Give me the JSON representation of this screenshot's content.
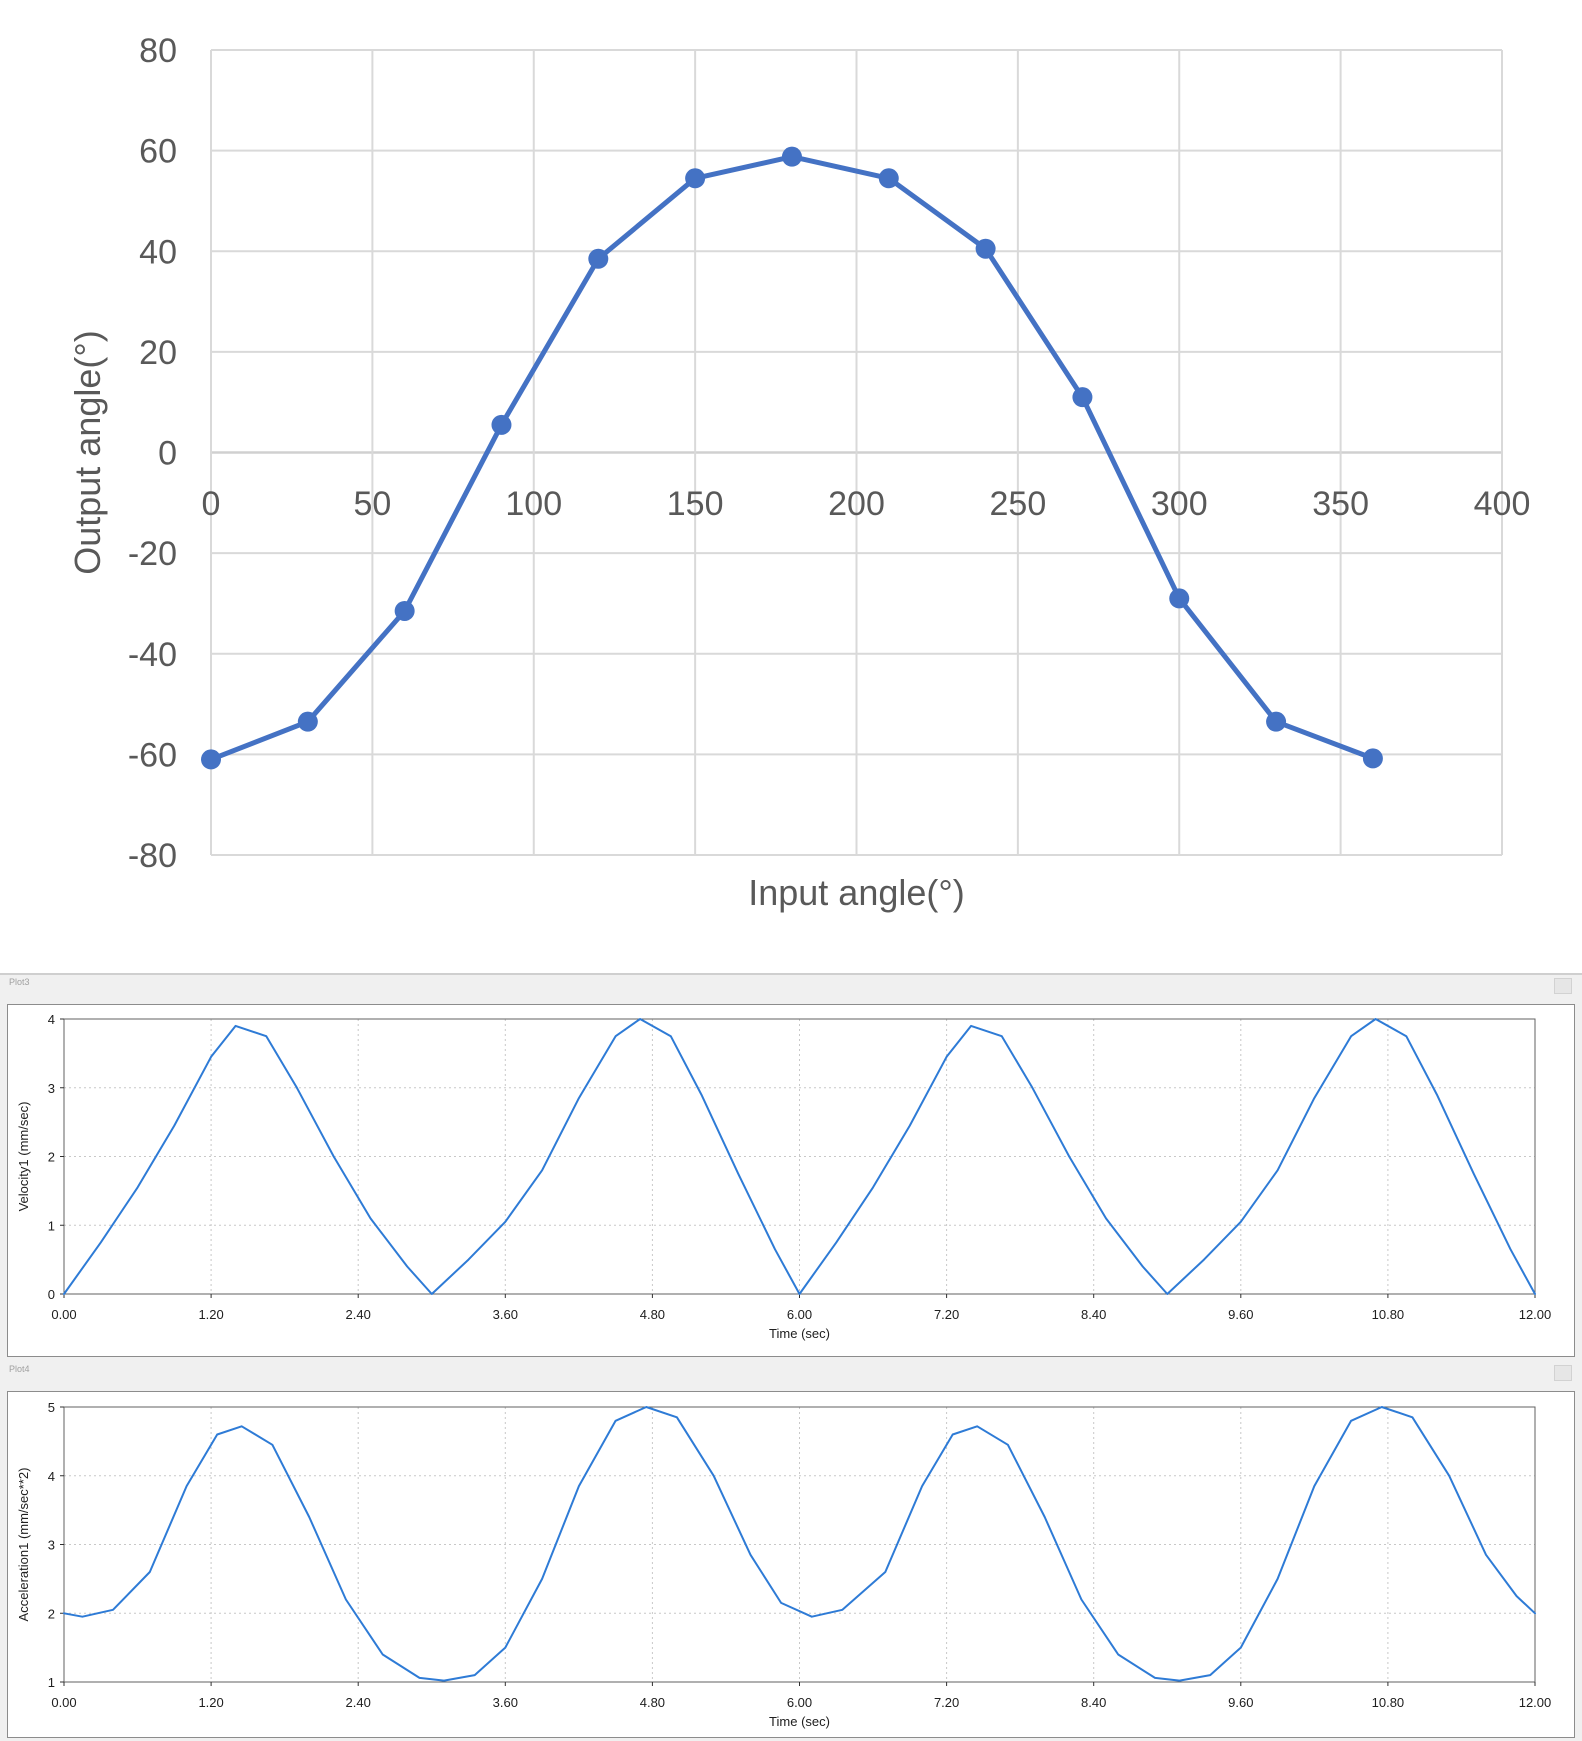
{
  "chart_data": [
    {
      "type": "line",
      "xlabel": "Input angle(°)",
      "ylabel": "Output angle(°)",
      "xlim": [
        0,
        400
      ],
      "ylim": [
        -80,
        80
      ],
      "x_ticks": [
        "0",
        "50",
        "100",
        "150",
        "200",
        "250",
        "300",
        "350",
        "400"
      ],
      "y_ticks": [
        "80",
        "60",
        "40",
        "20",
        "0",
        "-20",
        "-40",
        "-60",
        "-80"
      ],
      "grid": true,
      "markers": true,
      "color": "#4472c4",
      "series": [
        {
          "x": [
            0,
            30,
            60,
            90,
            120,
            150,
            180,
            210,
            240,
            270,
            300,
            330,
            360
          ],
          "values": [
            -61,
            -53.5,
            -31.5,
            5.5,
            38.5,
            54.5,
            58.8,
            54.5,
            40.5,
            11,
            -29,
            -53.5,
            -60.8
          ]
        }
      ]
    },
    {
      "type": "line",
      "panel_title": "Plot3",
      "xlabel": "Time (sec)",
      "ylabel": "Velocity1 (mm/sec)",
      "xlim": [
        0,
        12
      ],
      "ylim": [
        0,
        4
      ],
      "x_ticks": [
        "0.00",
        "1.20",
        "2.40",
        "3.60",
        "4.80",
        "6.00",
        "7.20",
        "8.40",
        "9.60",
        "10.80",
        "12.00"
      ],
      "y_ticks": [
        "0",
        "1",
        "2",
        "3",
        "4"
      ],
      "grid": true,
      "color": "#2e7bd6",
      "series": [
        {
          "x": [
            0,
            0.3,
            0.6,
            0.9,
            1.2,
            1.4,
            1.65,
            1.9,
            2.2,
            2.5,
            2.8,
            3.0,
            3.3,
            3.6,
            3.9,
            4.2,
            4.5,
            4.7,
            4.95,
            5.2,
            5.5,
            5.8,
            6.0,
            6.3,
            6.6,
            6.9,
            7.2,
            7.4,
            7.65,
            7.9,
            8.2,
            8.5,
            8.8,
            9.0,
            9.3,
            9.6,
            9.9,
            10.2,
            10.5,
            10.7,
            10.95,
            11.2,
            11.5,
            11.8,
            12.0
          ],
          "values": [
            0,
            0.75,
            1.55,
            2.45,
            3.45,
            3.9,
            3.75,
            3.0,
            2.0,
            1.1,
            0.4,
            0,
            0.5,
            1.05,
            1.8,
            2.85,
            3.75,
            4.0,
            3.75,
            2.9,
            1.75,
            0.65,
            0,
            0.75,
            1.55,
            2.45,
            3.45,
            3.9,
            3.75,
            3.0,
            2.0,
            1.1,
            0.4,
            0,
            0.5,
            1.05,
            1.8,
            2.85,
            3.75,
            4.0,
            3.75,
            2.9,
            1.75,
            0.65,
            0
          ]
        }
      ]
    },
    {
      "type": "line",
      "panel_title": "Plot4",
      "xlabel": "Time (sec)",
      "ylabel": "Acceleration1 (mm/sec**2)",
      "xlim": [
        0,
        12
      ],
      "ylim": [
        1,
        5
      ],
      "x_ticks": [
        "0.00",
        "1.20",
        "2.40",
        "3.60",
        "4.80",
        "6.00",
        "7.20",
        "8.40",
        "9.60",
        "10.80",
        "12.00"
      ],
      "y_ticks": [
        "1",
        "2",
        "3",
        "4",
        "5"
      ],
      "grid": true,
      "color": "#2e7bd6",
      "series": [
        {
          "x": [
            0,
            0.15,
            0.4,
            0.7,
            1.0,
            1.25,
            1.45,
            1.7,
            2.0,
            2.3,
            2.6,
            2.9,
            3.1,
            3.35,
            3.6,
            3.9,
            4.2,
            4.5,
            4.75,
            5.0,
            5.3,
            5.6,
            5.85,
            6.1,
            6.35,
            6.7,
            7.0,
            7.25,
            7.45,
            7.7,
            8.0,
            8.3,
            8.6,
            8.9,
            9.1,
            9.35,
            9.6,
            9.9,
            10.2,
            10.5,
            10.75,
            11.0,
            11.3,
            11.6,
            11.85,
            12.0
          ],
          "values": [
            2.0,
            1.95,
            2.05,
            2.6,
            3.85,
            4.6,
            4.72,
            4.45,
            3.4,
            2.2,
            1.4,
            1.06,
            1.02,
            1.1,
            1.5,
            2.5,
            3.85,
            4.8,
            5.0,
            4.85,
            4.0,
            2.85,
            2.15,
            1.95,
            2.05,
            2.6,
            3.85,
            4.6,
            4.72,
            4.45,
            3.4,
            2.2,
            1.4,
            1.06,
            1.02,
            1.1,
            1.5,
            2.5,
            3.85,
            4.8,
            5.0,
            4.85,
            4.0,
            2.85,
            2.25,
            2.0
          ]
        }
      ]
    }
  ]
}
